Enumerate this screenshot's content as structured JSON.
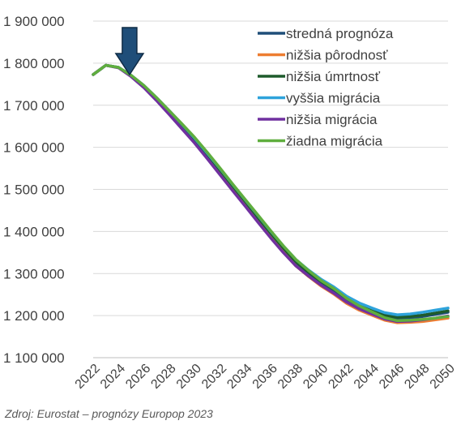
{
  "source_note": "Zdroj: Eurostat – prognózy Europop 2023",
  "chart_data": {
    "type": "line",
    "title": "",
    "xlabel": "",
    "ylabel": "",
    "ylim": [
      1100000,
      1900000
    ],
    "y_ticks": [
      {
        "value": 1100000,
        "label": "1 100 000"
      },
      {
        "value": 1200000,
        "label": "1 200 000"
      },
      {
        "value": 1300000,
        "label": "1 300 000"
      },
      {
        "value": 1400000,
        "label": "1 400 000"
      },
      {
        "value": 1500000,
        "label": "1 500 000"
      },
      {
        "value": 1600000,
        "label": "1 600 000"
      },
      {
        "value": 1700000,
        "label": "1 700 000"
      },
      {
        "value": 1800000,
        "label": "1 800 000"
      },
      {
        "value": 1900000,
        "label": "1 900 000"
      }
    ],
    "x_ticks": [
      "2022",
      "2024",
      "2026",
      "2028",
      "2030",
      "2032",
      "2034",
      "2036",
      "2038",
      "2040",
      "2042",
      "2044",
      "2046",
      "2048",
      "2050"
    ],
    "x": [
      2022,
      2023,
      2024,
      2025,
      2026,
      2027,
      2028,
      2029,
      2030,
      2031,
      2032,
      2033,
      2034,
      2035,
      2036,
      2037,
      2038,
      2039,
      2040,
      2041,
      2042,
      2043,
      2044,
      2045,
      2046,
      2047,
      2048,
      2049,
      2050
    ],
    "grid": true,
    "legend_position": "top-right",
    "annotation": {
      "type": "down-arrow",
      "x": 2025,
      "color": "#1f4e79"
    },
    "series": [
      {
        "name": "stredná prognóza",
        "color": "#1f4e79",
        "values": [
          1773000,
          1795000,
          1790000,
          1770000,
          1745000,
          1715000,
          1683000,
          1650000,
          1617000,
          1580000,
          1543000,
          1505000,
          1468000,
          1430000,
          1393000,
          1358000,
          1325000,
          1300000,
          1278000,
          1260000,
          1238000,
          1222000,
          1210000,
          1198000,
          1193000,
          1195000,
          1198000,
          1203000,
          1208000
        ]
      },
      {
        "name": "nižšia pôrodnosť",
        "color": "#ed7d31",
        "values": [
          1773000,
          1795000,
          1790000,
          1770000,
          1744000,
          1713000,
          1680000,
          1647000,
          1613000,
          1576000,
          1538000,
          1500000,
          1462000,
          1424000,
          1387000,
          1351000,
          1318000,
          1293000,
          1270000,
          1251000,
          1229000,
          1213000,
          1201000,
          1189000,
          1183000,
          1184000,
          1186000,
          1190000,
          1194000
        ]
      },
      {
        "name": "nižšia úmrtnosť",
        "color": "#1e5b2c",
        "values": [
          1773000,
          1795000,
          1790000,
          1770000,
          1746000,
          1716000,
          1685000,
          1652000,
          1619000,
          1583000,
          1546000,
          1508000,
          1471000,
          1433000,
          1396000,
          1361000,
          1328000,
          1303000,
          1281000,
          1263000,
          1241000,
          1225000,
          1213000,
          1201000,
          1196000,
          1198000,
          1201000,
          1206000,
          1211000
        ]
      },
      {
        "name": "vyššia migrácia",
        "color": "#2ea3db",
        "values": [
          1773000,
          1795000,
          1790000,
          1771000,
          1747000,
          1718000,
          1687000,
          1655000,
          1622000,
          1586000,
          1550000,
          1512000,
          1475000,
          1438000,
          1401000,
          1366000,
          1333000,
          1308000,
          1286000,
          1268000,
          1246000,
          1230000,
          1218000,
          1207000,
          1202000,
          1204000,
          1208000,
          1213000,
          1218000
        ]
      },
      {
        "name": "nižšia migrácia",
        "color": "#7030a0",
        "values": [
          1773000,
          1795000,
          1789000,
          1768000,
          1742000,
          1711000,
          1678000,
          1644000,
          1610000,
          1573000,
          1535000,
          1497000,
          1460000,
          1422000,
          1385000,
          1350000,
          1318000,
          1294000,
          1272000,
          1253000,
          1232000,
          1216000,
          1204000,
          1192000,
          1186000,
          1187000,
          1190000,
          1194000,
          1199000
        ]
      },
      {
        "name": "žiadna migrácia",
        "color": "#5fae3e",
        "values": [
          1773000,
          1795000,
          1790000,
          1771000,
          1747000,
          1718000,
          1687000,
          1656000,
          1624000,
          1588000,
          1551000,
          1513000,
          1476000,
          1439000,
          1402000,
          1366000,
          1333000,
          1307000,
          1283000,
          1264000,
          1241000,
          1223000,
          1209000,
          1195000,
          1188000,
          1189000,
          1191000,
          1194000,
          1198000
        ]
      }
    ]
  }
}
